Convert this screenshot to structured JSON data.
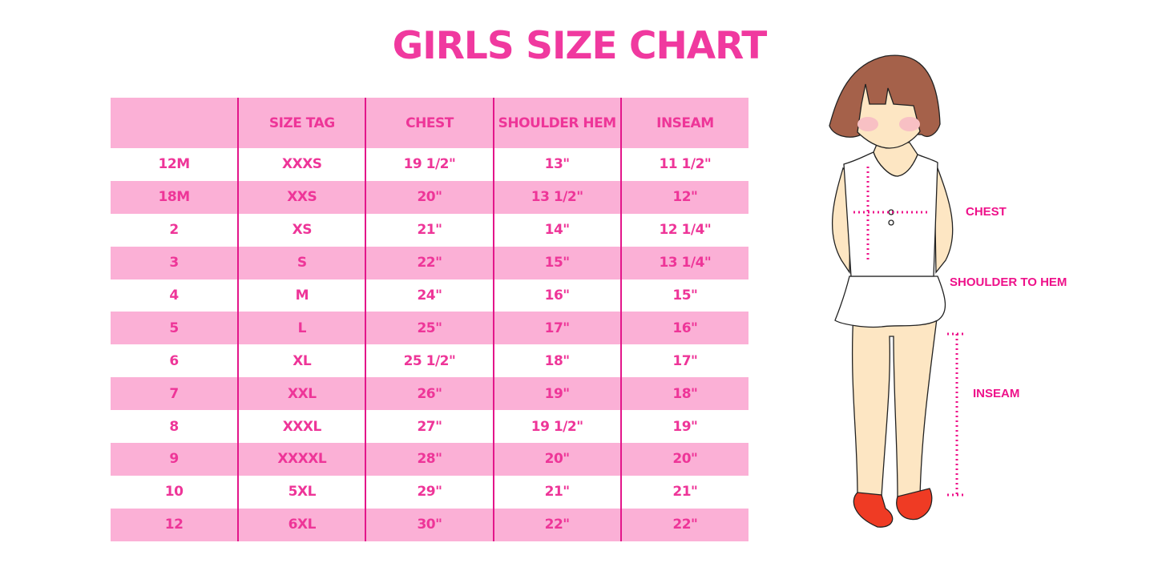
{
  "title": "GIRLS SIZE CHART",
  "colors": {
    "accent": "#f0399f",
    "row_pink": "#fbb0d6",
    "divider": "#e3168a"
  },
  "table": {
    "headers": [
      "",
      "SIZE TAG",
      "CHEST",
      "SHOULDER HEM",
      "INSEAM"
    ],
    "rows": [
      [
        "12M",
        "XXXS",
        "19 1/2\"",
        "13\"",
        "11 1/2\""
      ],
      [
        "18M",
        "XXS",
        "20\"",
        "13 1/2\"",
        "12\""
      ],
      [
        "2",
        "XS",
        "21\"",
        "14\"",
        "12 1/4\""
      ],
      [
        "3",
        "S",
        "22\"",
        "15\"",
        "13 1/4\""
      ],
      [
        "4",
        "M",
        "24\"",
        "16\"",
        "15\""
      ],
      [
        "5",
        "L",
        "25\"",
        "17\"",
        "16\""
      ],
      [
        "6",
        "XL",
        "25 1/2\"",
        "18\"",
        "17\""
      ],
      [
        "7",
        "XXL",
        "26\"",
        "19\"",
        "18\""
      ],
      [
        "8",
        "XXXL",
        "27\"",
        "19 1/2\"",
        "19\""
      ],
      [
        "9",
        "XXXXL",
        "28\"",
        "20\"",
        "20\""
      ],
      [
        "10",
        "5XL",
        "29\"",
        "21\"",
        "21\""
      ],
      [
        "12",
        "6XL",
        "30\"",
        "22\"",
        "22\""
      ]
    ]
  },
  "figure": {
    "labels": {
      "chest": "CHEST",
      "shoulder_to_hem": "SHOULDER TO HEM",
      "inseam": "INSEAM"
    }
  }
}
